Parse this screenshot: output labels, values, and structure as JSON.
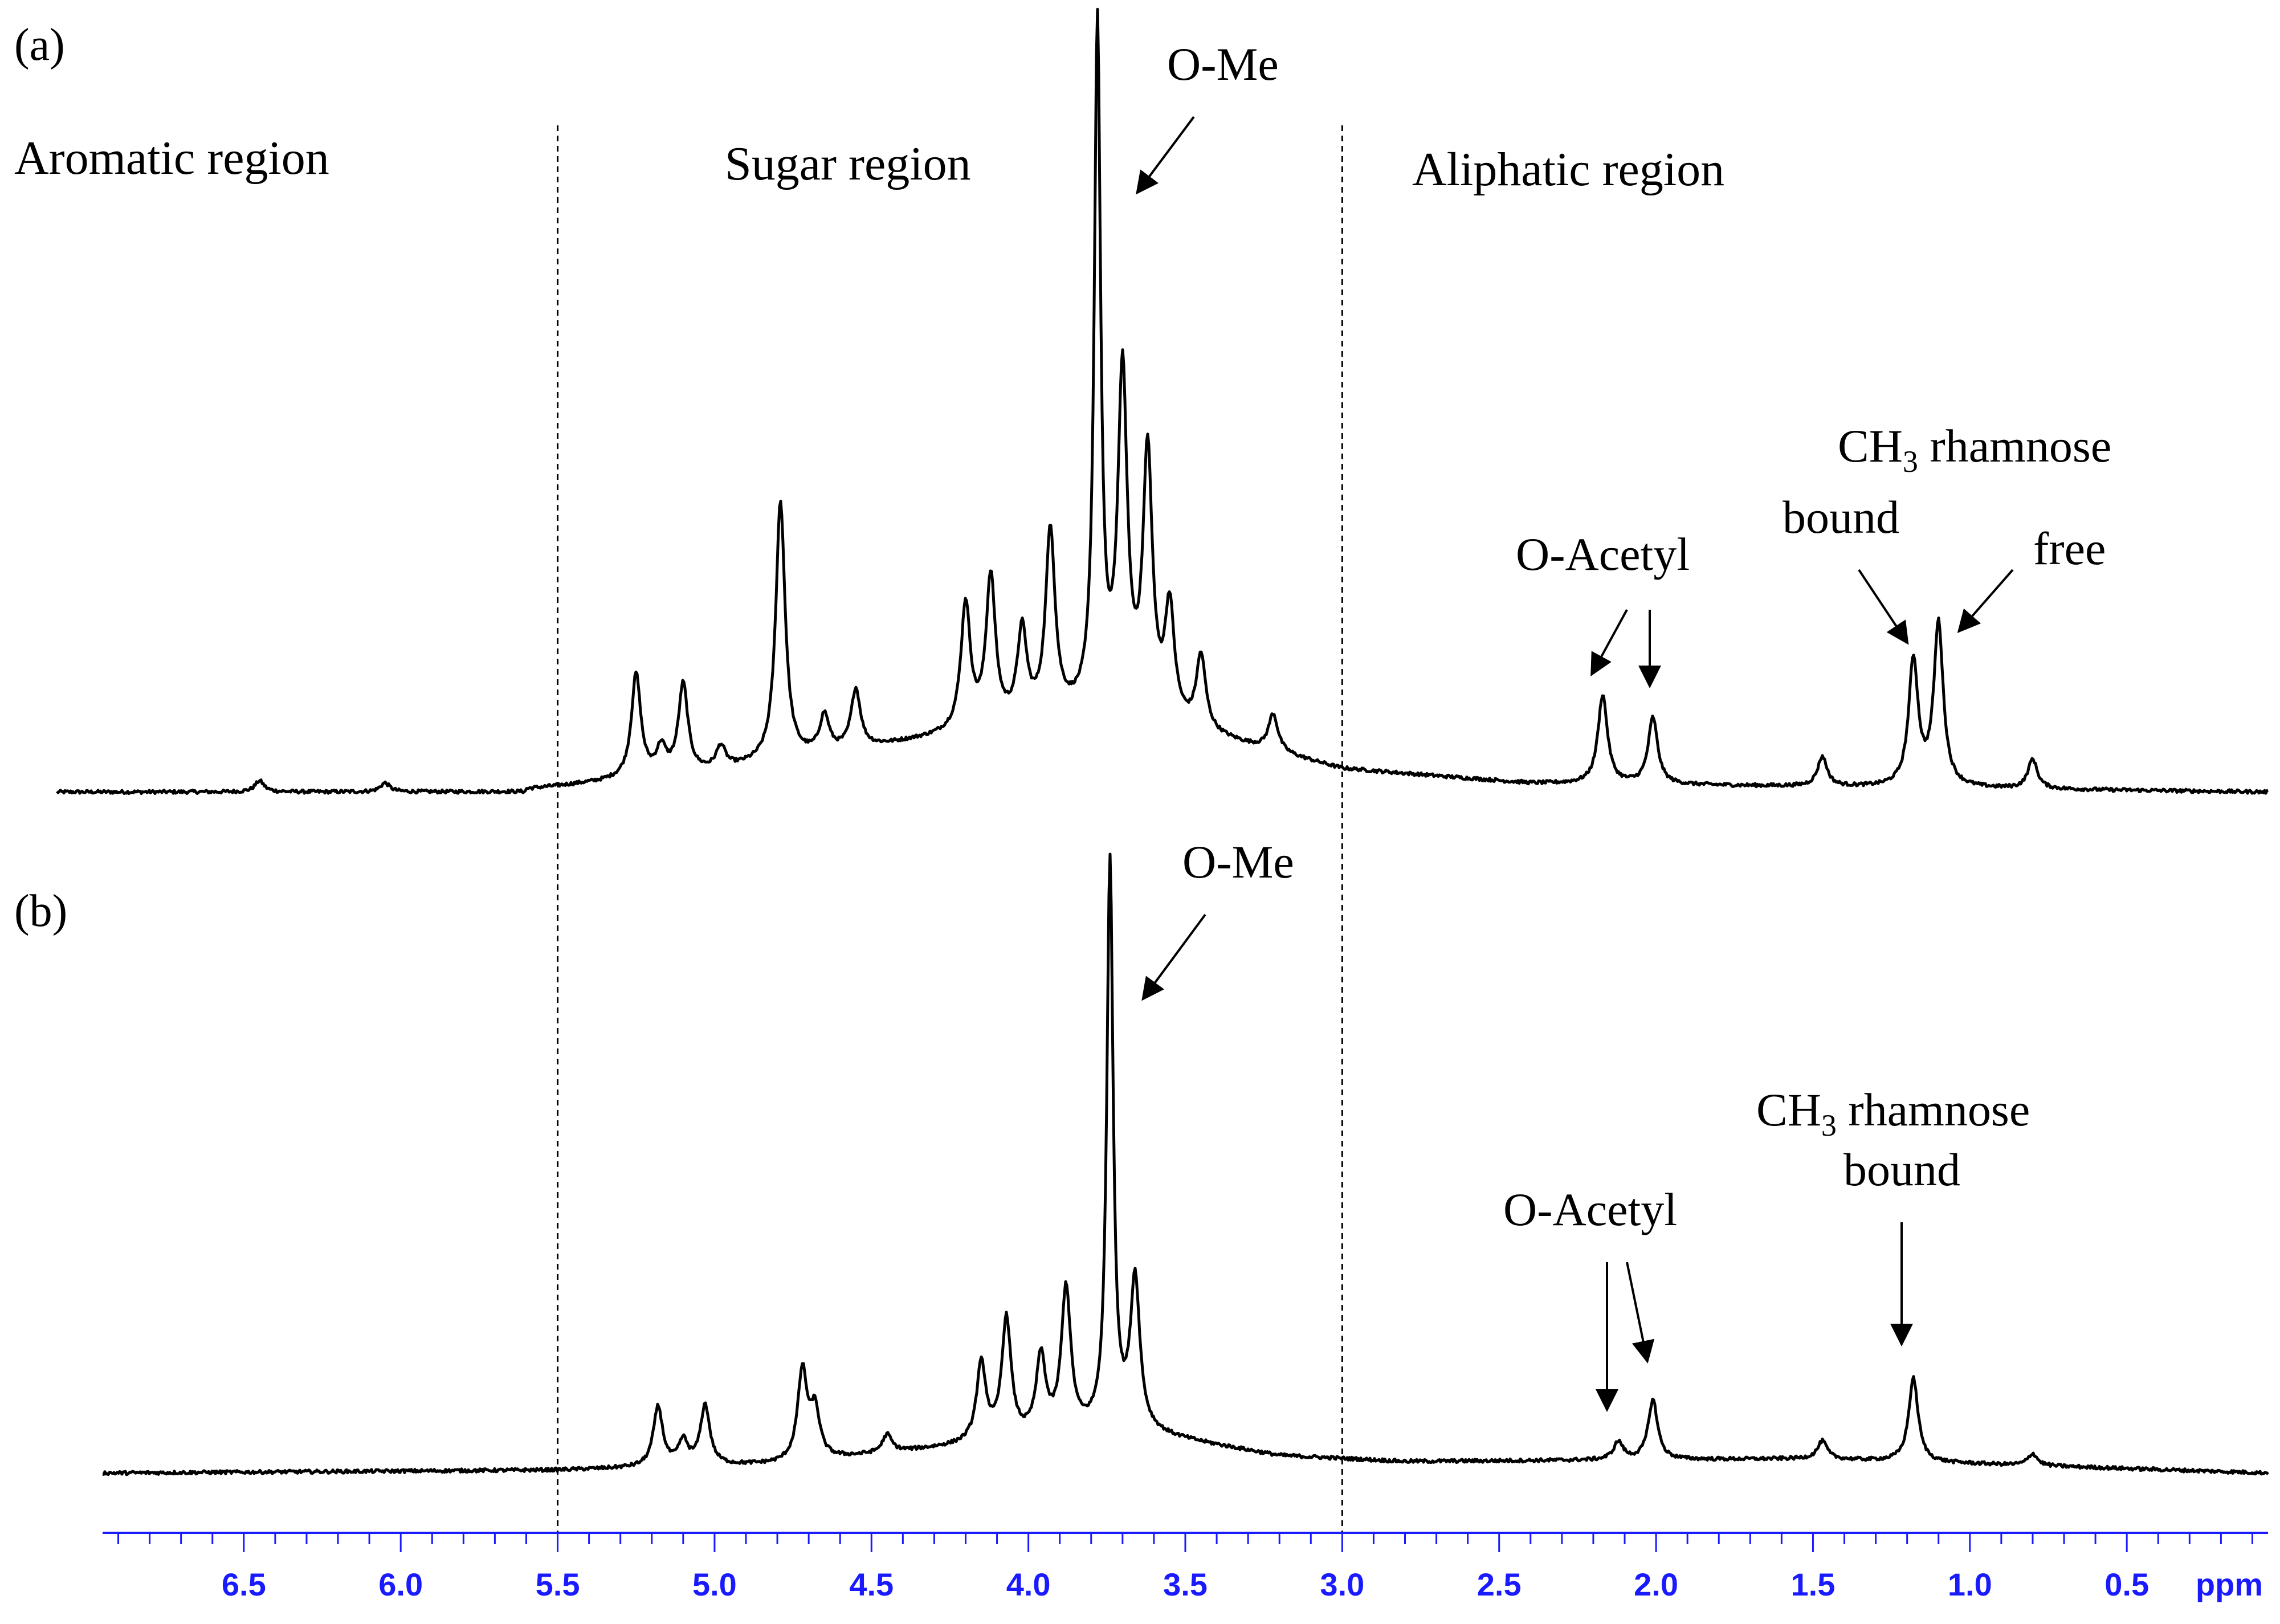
{
  "chart_data": {
    "type": "line",
    "x_unit": "ppm",
    "x_reversed": true,
    "xlim": [
      6.95,
      0.05
    ],
    "x_ticks": [
      "6.5",
      "6.0",
      "5.5",
      "5.0",
      "4.5",
      "4.0",
      "3.5",
      "3.0",
      "2.5",
      "2.0",
      "1.5",
      "1.0",
      "0.5"
    ],
    "region_dividers_ppm": [
      5.5,
      3.0
    ],
    "region_labels": [
      "Aromatic region",
      "Sugar region",
      "Aliphatic region"
    ],
    "panels": [
      {
        "label": "(a)",
        "peaks": [
          {
            "ppm": 6.45,
            "height": 0.015
          },
          {
            "ppm": 6.05,
            "height": 0.012
          },
          {
            "ppm": 5.25,
            "height": 0.14
          },
          {
            "ppm": 5.17,
            "height": 0.035
          },
          {
            "ppm": 5.1,
            "height": 0.12
          },
          {
            "ppm": 4.98,
            "height": 0.03
          },
          {
            "ppm": 4.79,
            "height": 0.35
          },
          {
            "ppm": 4.65,
            "height": 0.05
          },
          {
            "ppm": 4.55,
            "height": 0.08
          },
          {
            "ppm": 4.2,
            "height": 0.17
          },
          {
            "ppm": 4.12,
            "height": 0.2
          },
          {
            "ppm": 4.02,
            "height": 0.12
          },
          {
            "ppm": 3.93,
            "height": 0.25
          },
          {
            "ppm": 3.78,
            "height": 0.92
          },
          {
            "ppm": 3.7,
            "height": 0.45
          },
          {
            "ppm": 3.62,
            "height": 0.35
          },
          {
            "ppm": 3.55,
            "height": 0.15
          },
          {
            "ppm": 3.45,
            "height": 0.1
          },
          {
            "ppm": 3.22,
            "height": 0.05
          },
          {
            "ppm": 2.17,
            "height": 0.12
          },
          {
            "ppm": 2.01,
            "height": 0.09
          },
          {
            "ppm": 1.47,
            "height": 0.04
          },
          {
            "ppm": 1.18,
            "height": 0.17
          },
          {
            "ppm": 1.1,
            "height": 0.22
          },
          {
            "ppm": 0.8,
            "height": 0.04
          }
        ],
        "annotations": [
          {
            "text": "O-Me",
            "target_ppm": 3.78
          },
          {
            "text": "O-Acetyl",
            "target_ppm": [
              2.17,
              2.01
            ]
          },
          {
            "text": "CH3 rhamnose",
            "label_main": "CH",
            "label_sub": "3",
            "label_rest": " rhamnose"
          },
          {
            "text": "bound",
            "target_ppm": 1.18
          },
          {
            "text": "free",
            "target_ppm": 1.1
          }
        ]
      },
      {
        "label": "(b)",
        "peaks": [
          {
            "ppm": 5.18,
            "height": 0.1
          },
          {
            "ppm": 5.1,
            "height": 0.04
          },
          {
            "ppm": 5.03,
            "height": 0.1
          },
          {
            "ppm": 4.72,
            "height": 0.15
          },
          {
            "ppm": 4.68,
            "height": 0.08
          },
          {
            "ppm": 4.45,
            "height": 0.03
          },
          {
            "ppm": 4.15,
            "height": 0.13
          },
          {
            "ppm": 4.07,
            "height": 0.2
          },
          {
            "ppm": 3.96,
            "height": 0.13
          },
          {
            "ppm": 3.88,
            "height": 0.24
          },
          {
            "ppm": 3.74,
            "height": 0.95
          },
          {
            "ppm": 3.66,
            "height": 0.25
          },
          {
            "ppm": 2.12,
            "height": 0.03
          },
          {
            "ppm": 2.01,
            "height": 0.1
          },
          {
            "ppm": 1.47,
            "height": 0.03
          },
          {
            "ppm": 1.18,
            "height": 0.14
          },
          {
            "ppm": 0.8,
            "height": 0.02
          }
        ],
        "annotations": [
          {
            "text": "O-Me",
            "target_ppm": 3.74
          },
          {
            "text": "O-Acetyl",
            "target_ppm": [
              2.12,
              2.01
            ]
          },
          {
            "text": "CH3 rhamnose",
            "label_main": "CH",
            "label_sub": "3",
            "label_rest": " rhamnose"
          },
          {
            "text": "bound",
            "target_ppm": 1.18
          }
        ]
      }
    ]
  }
}
